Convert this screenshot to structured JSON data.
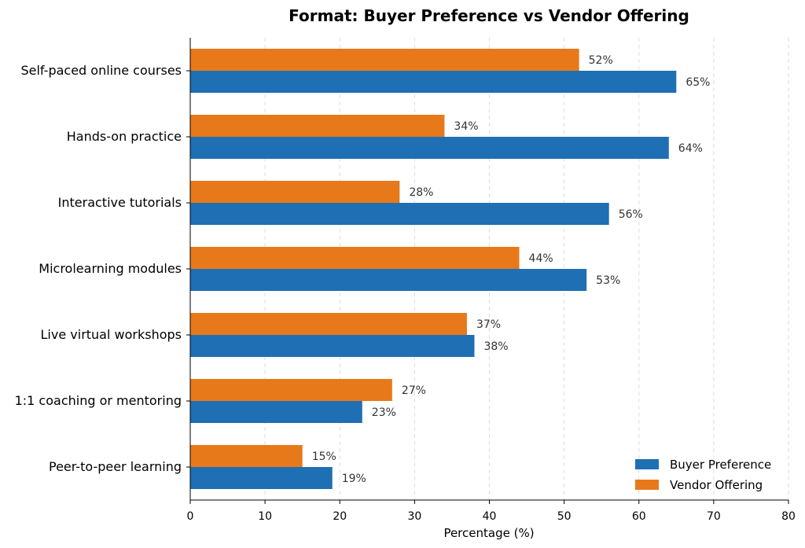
{
  "chart_data": {
    "type": "bar",
    "orientation": "horizontal",
    "title": "Format: Buyer Preference vs Vendor Offering",
    "xlabel": "Percentage (%)",
    "ylabel": "",
    "xlim": [
      0,
      80
    ],
    "xticks": [
      0,
      10,
      20,
      30,
      40,
      50,
      60,
      70,
      80
    ],
    "grid": "x-dashed",
    "legend_position": "bottom-right",
    "categories": [
      "Self-paced online courses",
      "Hands-on practice",
      "Interactive tutorials",
      "Microlearning modules",
      "Live virtual workshops",
      "1:1 coaching or mentoring",
      "Peer-to-peer learning"
    ],
    "series": [
      {
        "name": "Buyer Preference",
        "color": "#1f6fb4",
        "values": [
          65,
          64,
          56,
          53,
          38,
          23,
          19
        ],
        "labels": [
          "65%",
          "64%",
          "56%",
          "53%",
          "38%",
          "23%",
          "19%"
        ]
      },
      {
        "name": "Vendor Offering",
        "color": "#e8791a",
        "values": [
          52,
          34,
          28,
          44,
          37,
          27,
          15
        ],
        "labels": [
          "52%",
          "34%",
          "28%",
          "44%",
          "37%",
          "27%",
          "15%"
        ]
      }
    ]
  }
}
